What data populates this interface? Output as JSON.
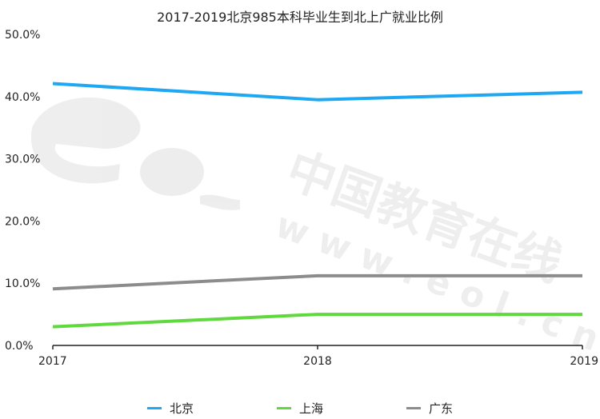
{
  "chart_data": {
    "type": "line",
    "title": "2017-2019北京985本科毕业生到北上广就业比例",
    "categories": [
      "2017",
      "2018",
      "2019"
    ],
    "ylim": [
      0,
      50
    ],
    "yticks": [
      "0.0%",
      "10.0%",
      "20.0%",
      "30.0%",
      "40.0%",
      "50.0%"
    ],
    "grid": false,
    "legend_position": "bottom",
    "series": [
      {
        "name": "北京",
        "color": "#1ea7f2",
        "values": [
          42.1,
          39.5,
          40.7
        ]
      },
      {
        "name": "上海",
        "color": "#5fd93d",
        "values": [
          3.0,
          5.0,
          5.0
        ]
      },
      {
        "name": "广东",
        "color": "#8c8c8c",
        "values": [
          9.1,
          11.2,
          11.2
        ]
      }
    ]
  },
  "watermark": {
    "logo_text": "eol",
    "brand_text": "中国教育在线",
    "url_text": "www.eol.cn"
  }
}
